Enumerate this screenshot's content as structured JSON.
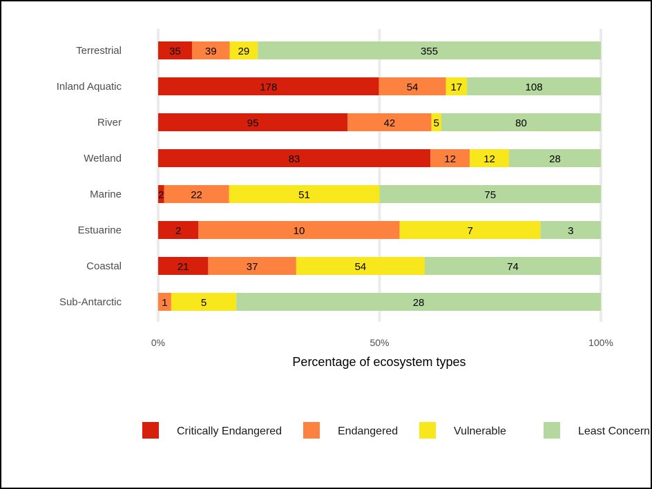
{
  "chart_data": {
    "type": "bar",
    "orientation": "horizontal",
    "stacked": "percent",
    "categories": [
      "Terrestrial",
      "Inland Aquatic",
      "River",
      "Wetland",
      "Marine",
      "Estuarine",
      "Coastal",
      "Sub-Antarctic"
    ],
    "series": [
      {
        "name": "Critically Endangered",
        "color": "#d7200c",
        "values": [
          35,
          178,
          95,
          83,
          2,
          2,
          21,
          0
        ]
      },
      {
        "name": "Endangered",
        "color": "#fd813f",
        "values": [
          39,
          54,
          42,
          12,
          22,
          10,
          37,
          1
        ]
      },
      {
        "name": "Vulnerable",
        "color": "#f8e71c",
        "values": [
          29,
          17,
          5,
          12,
          51,
          7,
          54,
          5
        ]
      },
      {
        "name": "Least Concern",
        "color": "#b5d89e",
        "values": [
          355,
          108,
          80,
          28,
          75,
          3,
          74,
          28
        ]
      }
    ],
    "xlabel": "Percentage of ecosystem types",
    "ylabel": "",
    "xticks": [
      "0%",
      "50%",
      "100%"
    ],
    "xlim": [
      0,
      100
    ],
    "grid": "major vertical",
    "legend": "bottom",
    "data_labels": true
  }
}
